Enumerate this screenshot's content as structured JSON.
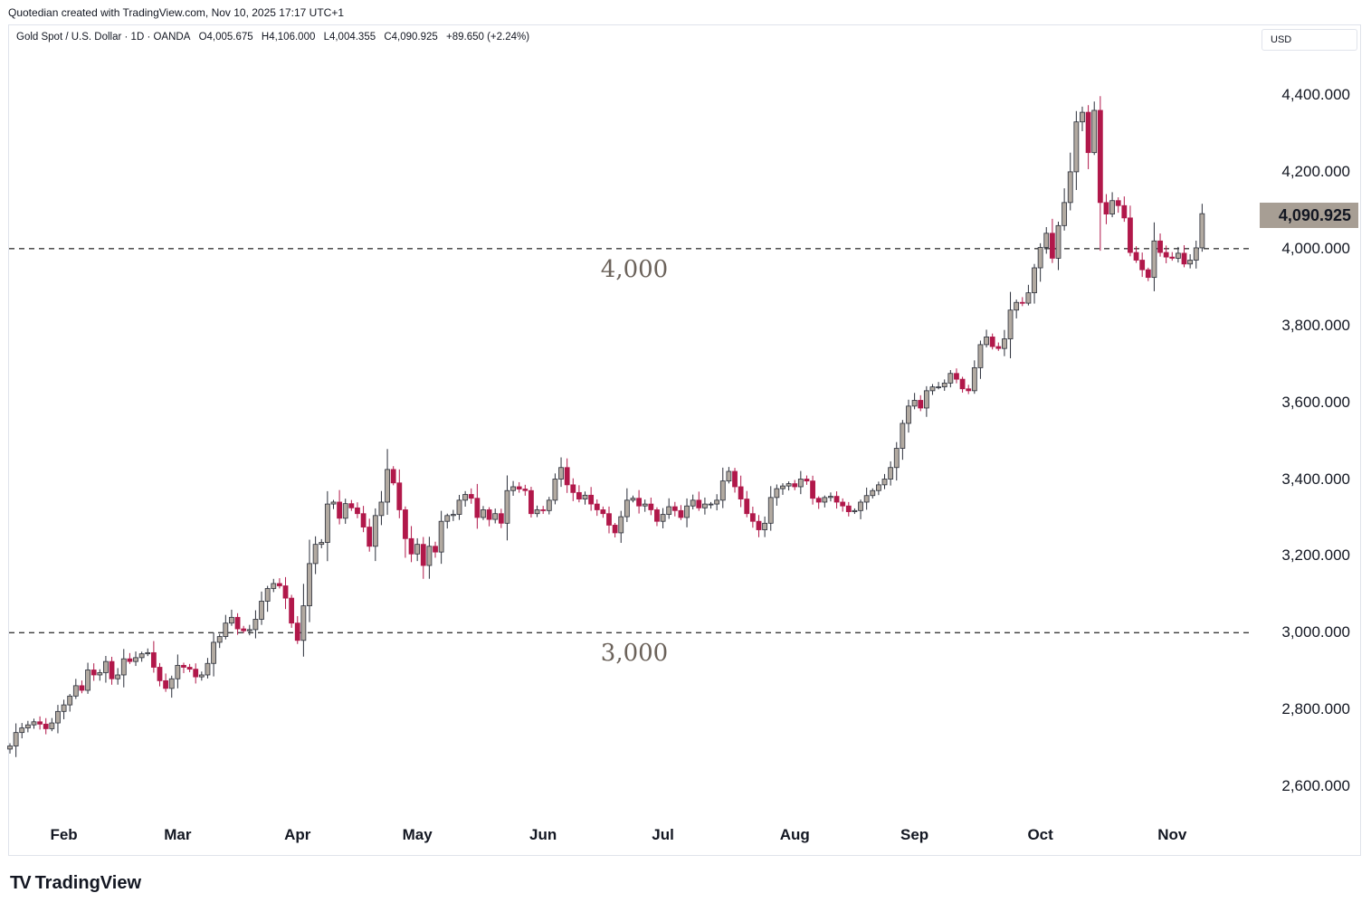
{
  "credit": "Quotedian created with TradingView.com, Nov 10, 2025 17:17 UTC+1",
  "legend": {
    "symbol": "Gold Spot / U.S. Dollar · 1D · OANDA",
    "open": "O4,005.675",
    "high": "H4,106.000",
    "low": "L4,004.355",
    "close": "C4,090.925",
    "change": "+89.650 (+2.24%)"
  },
  "currency": "USD",
  "last_price_label": "4,090.925",
  "brand": {
    "logo": "TV",
    "name": "TradingView"
  },
  "colors": {
    "up": "#b2aaa1",
    "down": "#b1184a",
    "outline": "#2a2e39",
    "last_price_bg": "#a79e94"
  },
  "chart_data": {
    "type": "candlestick",
    "yaxis": {
      "ticks": [
        2600,
        2800,
        3000,
        3200,
        3400,
        3600,
        3800,
        4000,
        4200,
        4400
      ],
      "tick_labels": [
        "2,600.000",
        "2,800.000",
        "3,000.000",
        "3,200.000",
        "3,400.000",
        "3,600.000",
        "3,800.000",
        "4,000.000",
        "4,200.000",
        "4,400.000"
      ],
      "range": [
        2540,
        4620
      ]
    },
    "xaxis": {
      "tick_labels": [
        "Feb",
        "Mar",
        "Apr",
        "May",
        "Jun",
        "Jul",
        "Aug",
        "Sep",
        "Oct",
        "Nov"
      ],
      "tick_bar_index": [
        9,
        28,
        48,
        68,
        89,
        109,
        131,
        151,
        172,
        194
      ]
    },
    "horizontal_lines": [
      {
        "value": 4000,
        "label": "4,000"
      },
      {
        "value": 3000,
        "label": "3,000"
      }
    ],
    "closes": [
      2705,
      2740,
      2752,
      2760,
      2768,
      2762,
      2750,
      2765,
      2795,
      2812,
      2835,
      2862,
      2850,
      2903,
      2890,
      2896,
      2925,
      2880,
      2890,
      2932,
      2925,
      2935,
      2945,
      2948,
      2910,
      2875,
      2855,
      2880,
      2915,
      2910,
      2905,
      2885,
      2890,
      2920,
      2975,
      2990,
      3025,
      3040,
      3010,
      3005,
      3008,
      3035,
      3082,
      3115,
      3128,
      3122,
      3090,
      3025,
      2980,
      3070,
      3180,
      3230,
      3235,
      3335,
      3340,
      3298,
      3336,
      3325,
      3310,
      3275,
      3225,
      3305,
      3340,
      3425,
      3390,
      3320,
      3245,
      3205,
      3230,
      3175,
      3225,
      3210,
      3290,
      3305,
      3308,
      3345,
      3360,
      3350,
      3300,
      3320,
      3295,
      3310,
      3285,
      3370,
      3380,
      3374,
      3370,
      3310,
      3320,
      3318,
      3345,
      3400,
      3430,
      3385,
      3365,
      3348,
      3358,
      3335,
      3320,
      3310,
      3280,
      3260,
      3302,
      3345,
      3350,
      3330,
      3335,
      3320,
      3290,
      3308,
      3328,
      3318,
      3300,
      3330,
      3345,
      3325,
      3335,
      3335,
      3345,
      3395,
      3420,
      3380,
      3348,
      3310,
      3290,
      3268,
      3285,
      3352,
      3375,
      3382,
      3388,
      3380,
      3400,
      3395,
      3350,
      3340,
      3352,
      3355,
      3340,
      3330,
      3315,
      3318,
      3340,
      3357,
      3370,
      3385,
      3400,
      3430,
      3480,
      3545,
      3590,
      3605,
      3585,
      3630,
      3640,
      3640,
      3650,
      3675,
      3660,
      3635,
      3630,
      3690,
      3750,
      3770,
      3745,
      3740,
      3765,
      3840,
      3860,
      3858,
      3885,
      3950,
      4003,
      4040,
      3975,
      4060,
      4120,
      4200,
      4330,
      4355,
      4250,
      4360,
      4120,
      4090,
      4125,
      4112,
      4080,
      3990,
      3970,
      3945,
      3925,
      4020,
      3990,
      3978,
      3975,
      3988,
      3960,
      3970,
      4002,
      4091
    ]
  }
}
